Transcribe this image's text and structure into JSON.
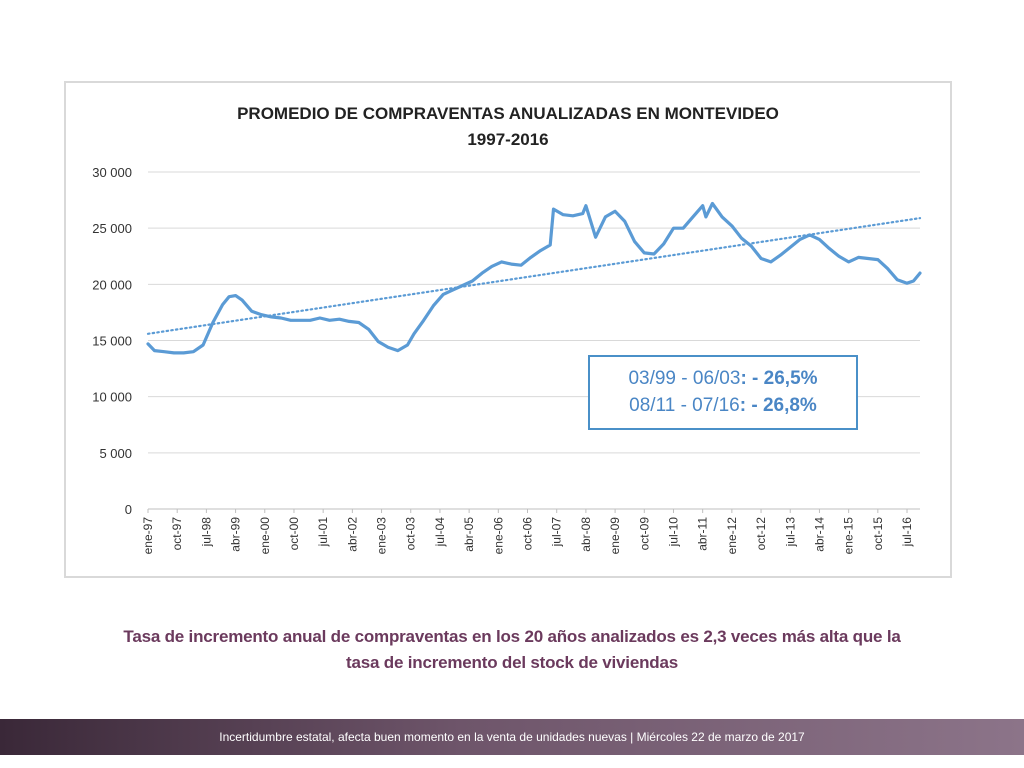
{
  "chart_data": {
    "type": "line",
    "title": "PROMEDIO DE COMPRAVENTAS ANUALIZADAS EN MONTEVIDEO",
    "subtitle": "1997-2016",
    "xlabel": "",
    "ylabel": "",
    "ylim": [
      0,
      30000
    ],
    "yticks": [
      "0",
      "5 000",
      "10 000",
      "15 000",
      "20 000",
      "25 000",
      "30 000"
    ],
    "ytick_values": [
      0,
      5000,
      10000,
      15000,
      20000,
      25000,
      30000
    ],
    "xlim": [
      "ene-97",
      "nov-16"
    ],
    "xticks": [
      "ene-97",
      "oct-97",
      "jul-98",
      "abr-99",
      "ene-00",
      "oct-00",
      "jul-01",
      "abr-02",
      "ene-03",
      "oct-03",
      "jul-04",
      "abr-05",
      "ene-06",
      "oct-06",
      "jul-07",
      "abr-08",
      "ene-09",
      "oct-09",
      "jul-10",
      "abr-11",
      "ene-12",
      "oct-12",
      "jul-13",
      "abr-14",
      "ene-15",
      "oct-15",
      "jul-16"
    ],
    "grid": true,
    "colors": {
      "series": "#5b9bd5",
      "trend": "#5b9bd5"
    },
    "series": [
      {
        "style": "solid",
        "x": [
          "ene-97",
          "mar-97",
          "jun-97",
          "sep-97",
          "dic-97",
          "mar-98",
          "jun-98",
          "sep-98",
          "dic-98",
          "feb-99",
          "abr-99",
          "jun-99",
          "sep-99",
          "dic-99",
          "mar-00",
          "jun-00",
          "sep-00",
          "dic-00",
          "mar-01",
          "jun-01",
          "sep-01",
          "dic-01",
          "mar-02",
          "jun-02",
          "sep-02",
          "dic-02",
          "mar-03",
          "jun-03",
          "sep-03",
          "nov-03",
          "feb-04",
          "may-04",
          "ago-04",
          "nov-04",
          "feb-05",
          "may-05",
          "ago-05",
          "nov-05",
          "feb-06",
          "may-06",
          "ago-06",
          "nov-06",
          "feb-07",
          "may-07",
          "jun-07",
          "sep-07",
          "dic-07",
          "mar-08",
          "abr-08",
          "jul-08",
          "oct-08",
          "ene-09",
          "abr-09",
          "jul-09",
          "oct-09",
          "ene-10",
          "abr-10",
          "jul-10",
          "oct-10",
          "ene-11",
          "abr-11",
          "may-11",
          "jul-11",
          "oct-11",
          "ene-12",
          "abr-12",
          "jul-12",
          "oct-12",
          "ene-13",
          "abr-13",
          "jul-13",
          "oct-13",
          "ene-14",
          "abr-14",
          "jul-14",
          "oct-14",
          "ene-15",
          "abr-15",
          "jul-15",
          "oct-15",
          "ene-16",
          "abr-16",
          "jul-16",
          "sep-16",
          "nov-16"
        ],
        "values": [
          14700,
          14100,
          14000,
          13900,
          13900,
          14000,
          14600,
          16600,
          18200,
          18900,
          19000,
          18600,
          17600,
          17300,
          17100,
          17000,
          16800,
          16800,
          16800,
          17000,
          16800,
          16900,
          16700,
          16600,
          16000,
          14900,
          14400,
          14100,
          14600,
          15600,
          16800,
          18100,
          19100,
          19500,
          19900,
          20300,
          21000,
          21600,
          22000,
          21800,
          21700,
          22400,
          23000,
          23500,
          26700,
          26200,
          26100,
          26300,
          27000,
          24200,
          26000,
          26500,
          25600,
          23800,
          22800,
          22700,
          23600,
          25000,
          25000,
          26000,
          27000,
          26000,
          27200,
          26000,
          25200,
          24100,
          23400,
          22300,
          22000,
          22600,
          23300,
          24000,
          24400,
          24000,
          23200,
          22500,
          22000,
          22400,
          22300,
          22200,
          21400,
          20400,
          20100,
          20300,
          21000
        ]
      },
      {
        "style": "dotted",
        "x": [
          "ene-97",
          "nov-16"
        ],
        "values": [
          15600,
          25900
        ]
      }
    ]
  },
  "annotation": {
    "line1_range": "03/99 - 06/03",
    "line1_sep": ": - ",
    "line1_value": "26,5%",
    "line2_range": "08/11 - 07/16",
    "line2_sep": ": - ",
    "line2_value": "26,8%"
  },
  "caption": {
    "line1": "Tasa de incremento anual de compraventas en los 20 años analizados es 2,3 veces más alta que la",
    "line2": "tasa de incremento del stock de viviendas"
  },
  "footer": {
    "text": "Incertidumbre estatal, afecta buen momento en la venta de unidades nuevas | Miércoles 22 de marzo de 2017"
  }
}
